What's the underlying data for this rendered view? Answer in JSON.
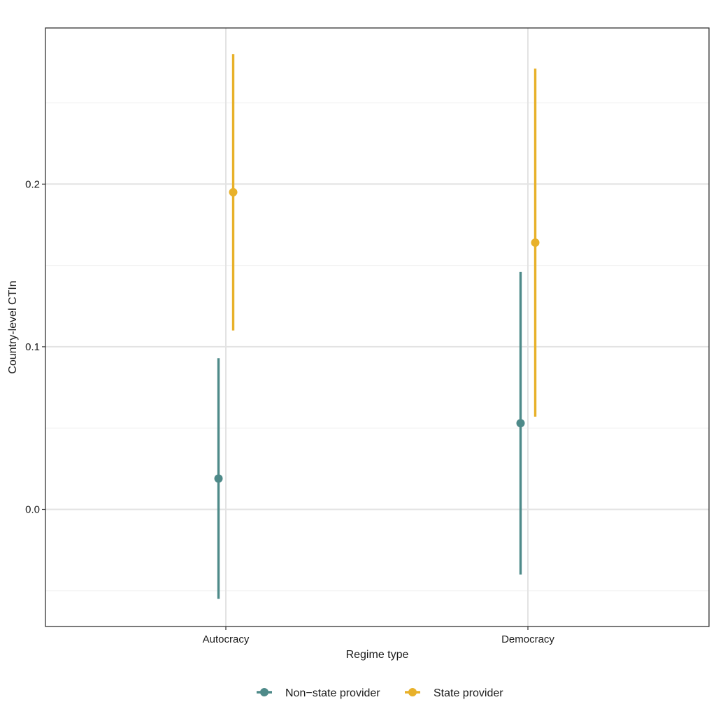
{
  "chart_data": {
    "type": "scatter",
    "subtype": "point-range",
    "xlabel": "Regime type",
    "ylabel": "Country-level CTIn",
    "categories": [
      "Autocracy",
      "Democracy"
    ],
    "ylim": [
      -0.072,
      0.296
    ],
    "yticks": [
      0.0,
      0.1,
      0.2
    ],
    "ytick_labels": [
      "0.0",
      "0.1",
      "0.2"
    ],
    "grid": true,
    "legend_position": "bottom",
    "series": [
      {
        "name": "Non−state provider",
        "color": "#4e8a89",
        "points": [
          {
            "category": "Autocracy",
            "estimate": 0.019,
            "lower": -0.055,
            "upper": 0.093
          },
          {
            "category": "Democracy",
            "estimate": 0.053,
            "lower": -0.04,
            "upper": 0.146
          }
        ]
      },
      {
        "name": "State provider",
        "color": "#e8b12a",
        "points": [
          {
            "category": "Autocracy",
            "estimate": 0.195,
            "lower": 0.11,
            "upper": 0.28
          },
          {
            "category": "Democracy",
            "estimate": 0.164,
            "lower": 0.057,
            "upper": 0.271
          }
        ]
      }
    ]
  }
}
